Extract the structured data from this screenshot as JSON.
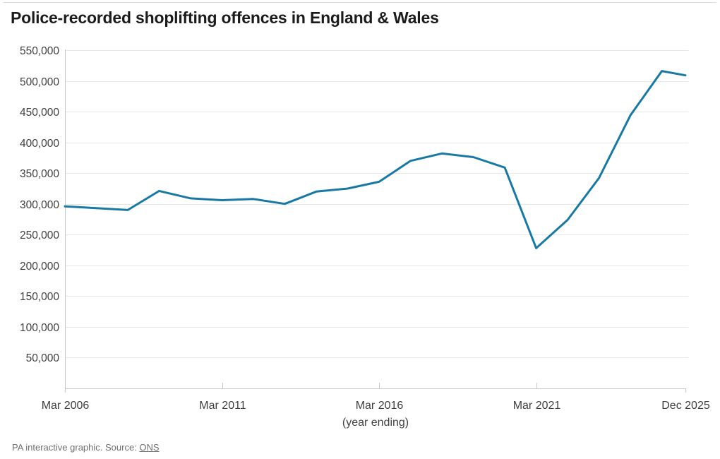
{
  "title": "Police-recorded shoplifting offences in England & Wales",
  "footer": {
    "prefix": "PA interactive graphic. Source: ",
    "source_link": "ONS"
  },
  "chart_data": {
    "type": "line",
    "title": "Police-recorded shoplifting offences in England & Wales",
    "xlabel": "(year ending)",
    "ylabel": "",
    "x_unit": "years since Mar 2006",
    "xlim": [
      0,
      19.75
    ],
    "ylim": [
      0,
      550000
    ],
    "grid": true,
    "legend": "none",
    "colors": {
      "line": "#1879a4",
      "grid": "#e7e7e7",
      "axis": "#c9c9c9",
      "tick_label": "#3f3f3f"
    },
    "x_ticks": [
      {
        "t": 0,
        "label": "Mar 2006"
      },
      {
        "t": 5,
        "label": "Mar 2011"
      },
      {
        "t": 10,
        "label": "Mar 2016"
      },
      {
        "t": 15,
        "label": "Mar 2021"
      },
      {
        "t": 19.75,
        "label": "Dec 2025"
      }
    ],
    "y_ticks": [
      {
        "v": 50000,
        "label": "50,000"
      },
      {
        "v": 100000,
        "label": "100,000"
      },
      {
        "v": 150000,
        "label": "150,000"
      },
      {
        "v": 200000,
        "label": "200,000"
      },
      {
        "v": 250000,
        "label": "250,000"
      },
      {
        "v": 300000,
        "label": "300,000"
      },
      {
        "v": 350000,
        "label": "350,000"
      },
      {
        "v": 400000,
        "label": "400,000"
      },
      {
        "v": 450000,
        "label": "450,000"
      },
      {
        "v": 500000,
        "label": "500,000"
      },
      {
        "v": 550000,
        "label": "550,000"
      }
    ],
    "series": [
      {
        "name": "Shoplifting offences",
        "points": [
          {
            "period": "Mar 2006",
            "t": 0,
            "value": 296000
          },
          {
            "period": "Mar 2007",
            "t": 1,
            "value": 293000
          },
          {
            "period": "Mar 2008",
            "t": 2,
            "value": 290000
          },
          {
            "period": "Mar 2009",
            "t": 3,
            "value": 321000
          },
          {
            "period": "Mar 2010",
            "t": 4,
            "value": 309000
          },
          {
            "period": "Mar 2011",
            "t": 5,
            "value": 306000
          },
          {
            "period": "Mar 2012",
            "t": 6,
            "value": 308000
          },
          {
            "period": "Mar 2013",
            "t": 7,
            "value": 300000
          },
          {
            "period": "Mar 2014",
            "t": 8,
            "value": 320000
          },
          {
            "period": "Mar 2015",
            "t": 9,
            "value": 325000
          },
          {
            "period": "Mar 2016",
            "t": 10,
            "value": 336000
          },
          {
            "period": "Mar 2017",
            "t": 11,
            "value": 370000
          },
          {
            "period": "Mar 2018",
            "t": 12,
            "value": 382000
          },
          {
            "period": "Mar 2019",
            "t": 13,
            "value": 376000
          },
          {
            "period": "Mar 2020",
            "t": 14,
            "value": 359000
          },
          {
            "period": "Mar 2021",
            "t": 15,
            "value": 228000
          },
          {
            "period": "Mar 2022",
            "t": 16,
            "value": 274000
          },
          {
            "period": "Mar 2023",
            "t": 17,
            "value": 342000
          },
          {
            "period": "Mar 2024",
            "t": 18,
            "value": 444000
          },
          {
            "period": "Mar 2025",
            "t": 19,
            "value": 516000
          },
          {
            "period": "Dec 2025",
            "t": 19.75,
            "value": 509000
          }
        ]
      }
    ]
  }
}
